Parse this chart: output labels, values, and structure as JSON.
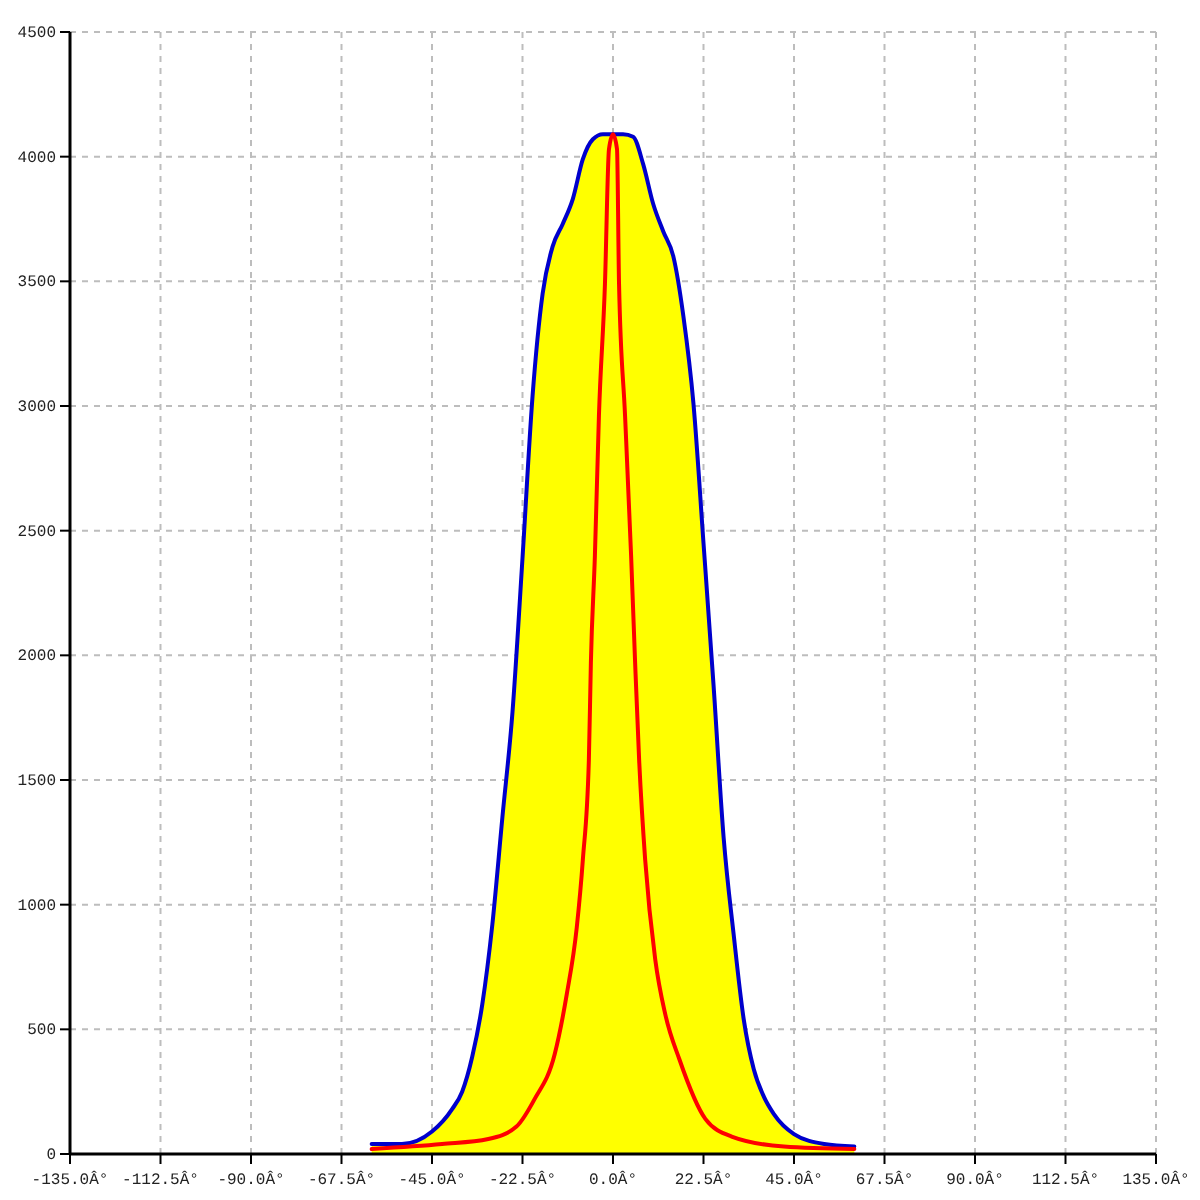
{
  "chart_data": {
    "type": "area",
    "xlim": [
      -135,
      135
    ],
    "ylim": [
      0,
      4500
    ],
    "xticks": [
      {
        "value": -135,
        "label": "-135.0Â°"
      },
      {
        "value": -112.5,
        "label": "-112.5Â°"
      },
      {
        "value": -90,
        "label": "-90.0Â°"
      },
      {
        "value": -67.5,
        "label": "-67.5Â°"
      },
      {
        "value": -45,
        "label": "-45.0Â°"
      },
      {
        "value": -22.5,
        "label": "-22.5Â°"
      },
      {
        "value": 0,
        "label": "0.0Â°"
      },
      {
        "value": 22.5,
        "label": "22.5Â°"
      },
      {
        "value": 45,
        "label": "45.0Â°"
      },
      {
        "value": 67.5,
        "label": "67.5Â°"
      },
      {
        "value": 90,
        "label": "90.0Â°"
      },
      {
        "value": 112.5,
        "label": "112.5Â°"
      },
      {
        "value": 135,
        "label": "135.0Â°"
      }
    ],
    "yticks": [
      0,
      500,
      1000,
      1500,
      2000,
      2500,
      3000,
      3500,
      4000,
      4500
    ],
    "grid": true,
    "series": [
      {
        "color": "#ffff00",
        "x": [
          -60,
          -52.5,
          -45,
          -40,
          -37.5,
          -35,
          -32.5,
          -30,
          -27.5,
          -25,
          -22.5,
          -20,
          -17.5,
          -15,
          -12.5,
          -10,
          -7.5,
          -5,
          -2.5,
          0,
          2.5,
          5,
          7.5,
          10,
          12.5,
          15,
          17.5,
          20,
          22.5,
          25,
          27.5,
          30,
          32.5,
          35,
          37.5,
          40,
          45,
          52.5,
          60
        ],
        "values": [
          40,
          40,
          90,
          180,
          250,
          390,
          600,
          920,
          1350,
          1770,
          2390,
          3040,
          3450,
          3640,
          3730,
          3830,
          3990,
          4070,
          4090,
          4090,
          4090,
          4080,
          3970,
          3810,
          3700,
          3600,
          3360,
          3010,
          2450,
          1880,
          1270,
          880,
          540,
          340,
          230,
          160,
          80,
          40,
          30
        ]
      },
      {
        "type": "line",
        "color": "#0000cc",
        "x": [
          -60,
          -52.5,
          -45,
          -40,
          -37.5,
          -35,
          -32.5,
          -30,
          -27.5,
          -25,
          -22.5,
          -20,
          -17.5,
          -15,
          -12.5,
          -10,
          -7.5,
          -5,
          -2.5,
          0,
          2.5,
          5,
          7.5,
          10,
          12.5,
          15,
          17.5,
          20,
          22.5,
          25,
          27.5,
          30,
          32.5,
          35,
          37.5,
          40,
          45,
          52.5,
          60
        ],
        "values": [
          40,
          40,
          90,
          180,
          250,
          390,
          600,
          920,
          1350,
          1770,
          2390,
          3040,
          3450,
          3640,
          3730,
          3830,
          3990,
          4070,
          4090,
          4090,
          4090,
          4080,
          3970,
          3810,
          3700,
          3600,
          3360,
          3010,
          2450,
          1880,
          1270,
          880,
          540,
          340,
          230,
          160,
          80,
          40,
          30
        ]
      },
      {
        "type": "line",
        "color": "#ff0000",
        "x": [
          -60,
          -42.5,
          -31,
          -24,
          -19.5,
          -14.5,
          -11.5,
          -9,
          -7.5,
          -6,
          -5.5,
          -4.5,
          -3.5,
          -2,
          -1,
          0,
          1,
          1.5,
          3,
          4.5,
          5.5,
          6.5,
          8,
          10.5,
          13,
          16.5,
          23,
          29.5,
          42.5,
          60
        ],
        "values": [
          20,
          40,
          60,
          110,
          220,
          400,
          640,
          910,
          1180,
          1580,
          1970,
          2400,
          2960,
          3490,
          4030,
          4090,
          4030,
          3490,
          2960,
          2400,
          1970,
          1580,
          1180,
          780,
          560,
          380,
          140,
          70,
          30,
          20
        ]
      }
    ]
  }
}
